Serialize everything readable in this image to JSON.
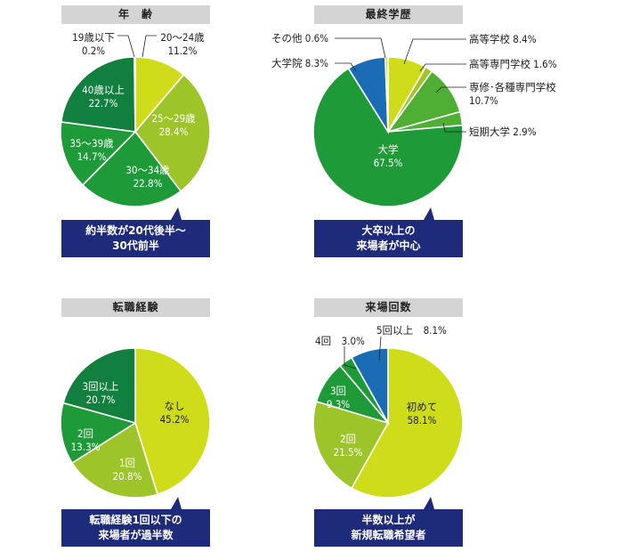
{
  "colors": {
    "lime": "#cfdc1a",
    "yellowgreen": "#9dc428",
    "midgreen": "#4fae34",
    "green": "#1f9a38",
    "darkgreen": "#117f3d",
    "blue": "#1a6cb4",
    "navy": "#1e2a7a",
    "gray": "#d4d4d4"
  },
  "chart_data": [
    {
      "type": "pie",
      "title": "年　齢",
      "slices": [
        {
          "label": "20〜24歳",
          "value": 11.2,
          "text": "11.2%"
        },
        {
          "label": "25〜29歳",
          "value": 28.4,
          "text": "28.4%"
        },
        {
          "label": "30〜34歳",
          "value": 22.8,
          "text": "22.8%"
        },
        {
          "label": "35〜39歳",
          "value": 14.7,
          "text": "14.7%"
        },
        {
          "label": "40歳以上",
          "value": 22.7,
          "text": "22.7%"
        },
        {
          "label": "19歳以下",
          "value": 0.2,
          "text": "0.2%"
        }
      ],
      "callout": [
        "約半数が20代後半〜",
        "30代前半"
      ]
    },
    {
      "type": "pie",
      "title": "最終学歴",
      "slices": [
        {
          "label": "高等学校",
          "value": 8.4,
          "text": "8.4%"
        },
        {
          "label": "高等専門学校",
          "value": 1.6,
          "text": "1.6%"
        },
        {
          "label": "専修･各種専門学校",
          "value": 10.7,
          "text": "10.7%"
        },
        {
          "label": "短期大学",
          "value": 2.9,
          "text": "2.9%"
        },
        {
          "label": "大学",
          "value": 67.5,
          "text": "67.5%"
        },
        {
          "label": "大学院",
          "value": 8.3,
          "text": "8.3%"
        },
        {
          "label": "その他",
          "value": 0.6,
          "text": "0.6%"
        }
      ],
      "callout": [
        "大卒以上の",
        "来場者が中心"
      ]
    },
    {
      "type": "pie",
      "title": "転職経験",
      "slices": [
        {
          "label": "なし",
          "value": 45.2,
          "text": "45.2%"
        },
        {
          "label": "1回",
          "value": 20.8,
          "text": "20.8%"
        },
        {
          "label": "2回",
          "value": 13.3,
          "text": "13.3%"
        },
        {
          "label": "3回以上",
          "value": 20.7,
          "text": "20.7%"
        }
      ],
      "callout": [
        "転職経験1回以下の",
        "来場者が過半数"
      ]
    },
    {
      "type": "pie",
      "title": "来場回数",
      "slices": [
        {
          "label": "初めて",
          "value": 58.1,
          "text": "58.1%"
        },
        {
          "label": "2回",
          "value": 21.5,
          "text": "21.5%"
        },
        {
          "label": "3回",
          "value": 9.3,
          "text": "9.3%"
        },
        {
          "label": "4回",
          "value": 3.0,
          "text": "3.0%"
        },
        {
          "label": "5回以上",
          "value": 8.1,
          "text": "8.1%"
        }
      ],
      "callout": [
        "半数以上が",
        "新規転職希望者"
      ]
    }
  ]
}
